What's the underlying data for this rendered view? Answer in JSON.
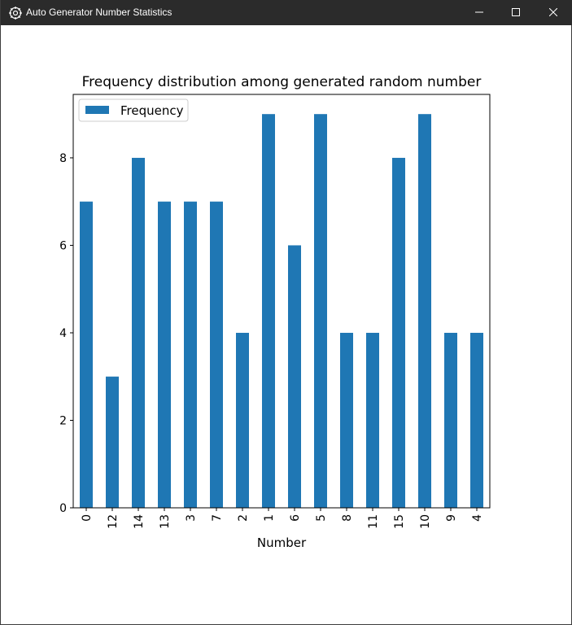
{
  "window": {
    "title": "Auto Generator Number Statistics",
    "icon": "app-gear-icon",
    "controls": [
      "minimize-icon",
      "maximize-icon",
      "close-icon"
    ]
  },
  "colors": {
    "titlebar": "#2b2b2b",
    "bar": "#1f77b4",
    "background": "#ffffff"
  },
  "chart_data": {
    "type": "bar",
    "title": "Frequency distribution among generated random number",
    "xlabel": "Number",
    "ylabel": "",
    "categories": [
      "0",
      "12",
      "14",
      "13",
      "3",
      "7",
      "2",
      "1",
      "6",
      "5",
      "8",
      "11",
      "15",
      "10",
      "9",
      "4"
    ],
    "series": [
      {
        "name": "Frequency",
        "values": [
          7,
          3,
          8,
          7,
          7,
          7,
          4,
          9,
          6,
          9,
          4,
          4,
          8,
          9,
          4,
          4
        ]
      }
    ],
    "yticks": [
      "0",
      "2",
      "4",
      "6",
      "8"
    ],
    "ylim": [
      0,
      9.45
    ],
    "legend_position": "top-left",
    "grid": false
  }
}
